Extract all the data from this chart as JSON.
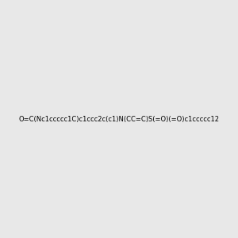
{
  "smiles": "O=C(Nc1ccccc1C)c1ccc2c(c1)N(CC=C)S(=O)(=O)c1ccccc12",
  "image_size": 300,
  "background_color": "#e8e8e8",
  "title": ""
}
